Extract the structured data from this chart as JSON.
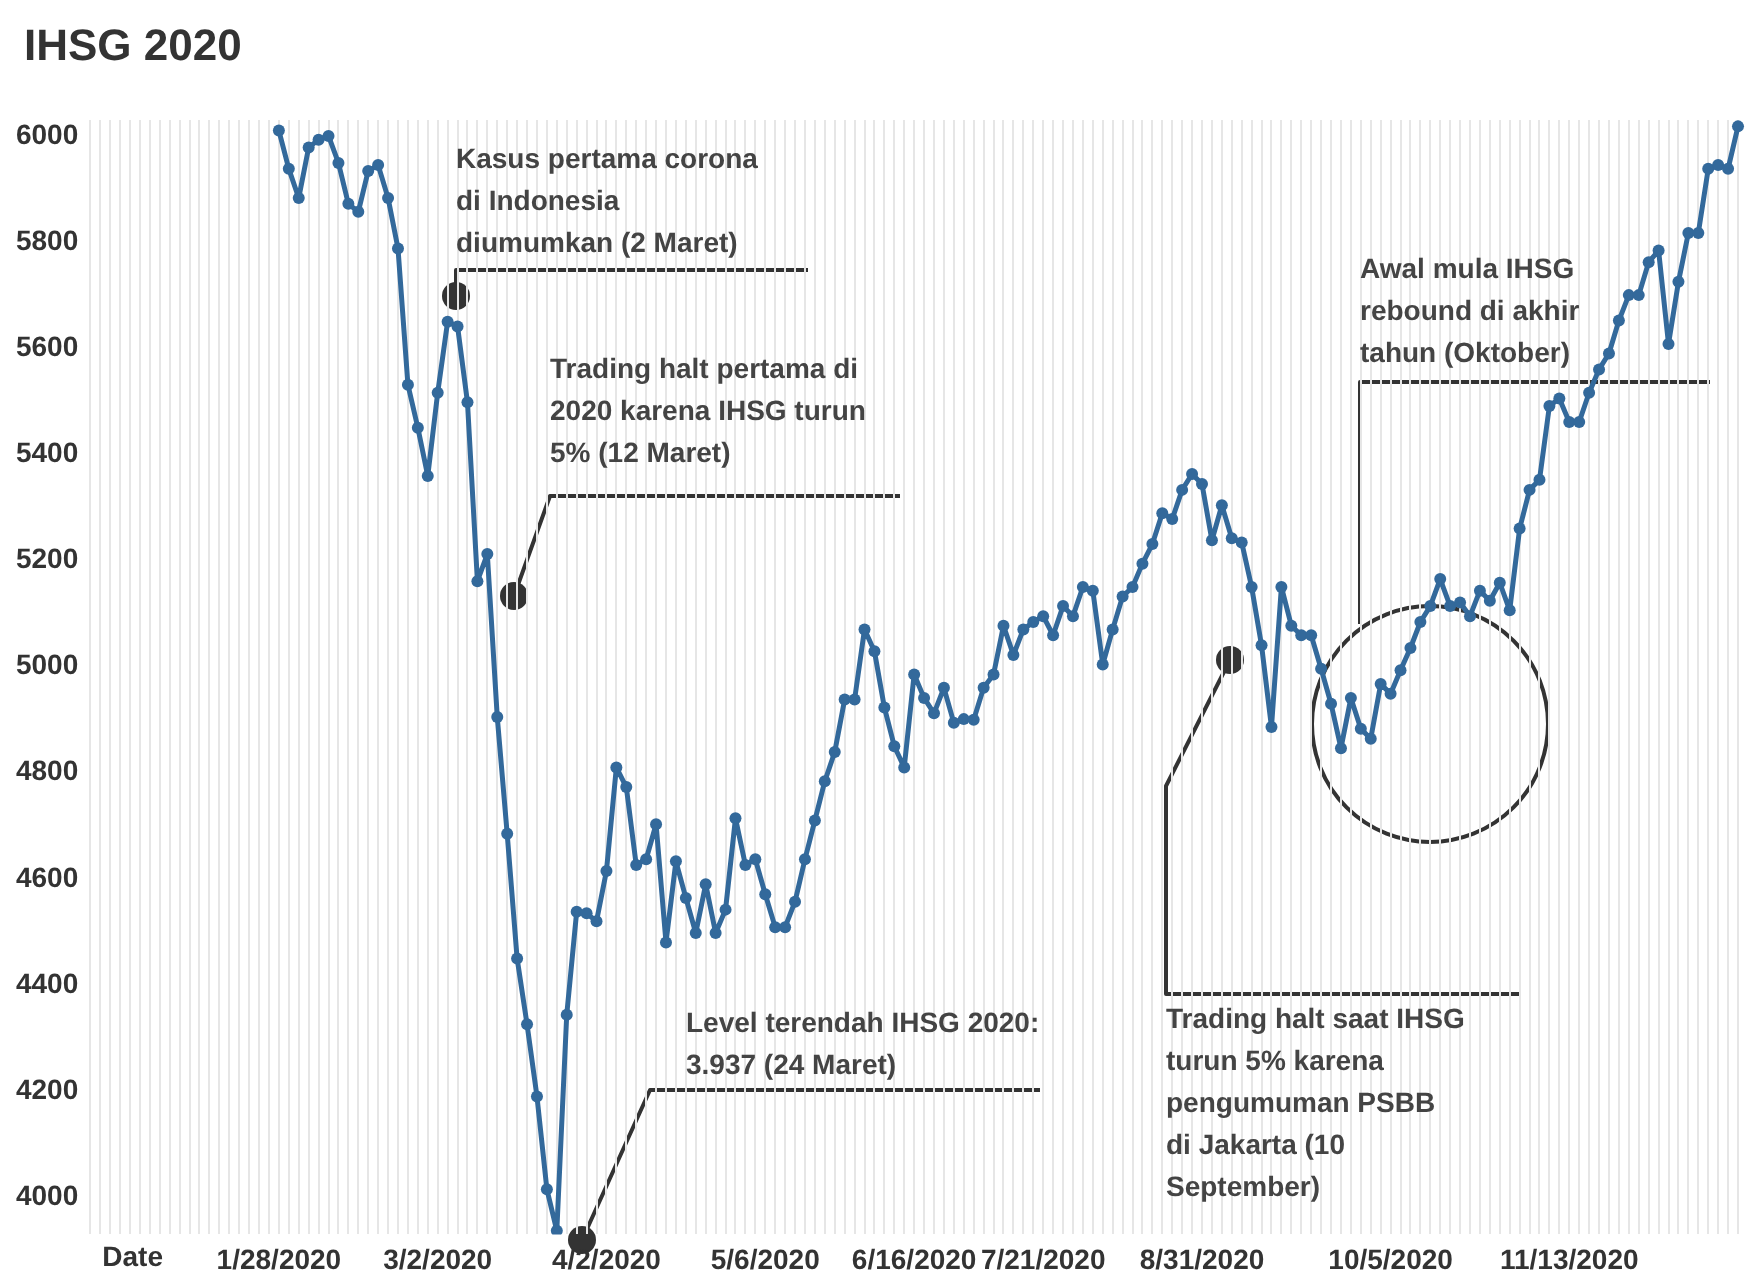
{
  "chart_data": {
    "type": "line",
    "title": "IHSG 2020",
    "xlabel": "Date",
    "categories": [
      null,
      null,
      null,
      null,
      null,
      null,
      null,
      null,
      null,
      null,
      null,
      null,
      null,
      null,
      null,
      null,
      null,
      null,
      null,
      "1/28/2020",
      null,
      null,
      null,
      null,
      null,
      null,
      null,
      null,
      null,
      null,
      null,
      null,
      null,
      null,
      null,
      "3/2/2020",
      null,
      null,
      null,
      null,
      null,
      null,
      null,
      null,
      null,
      null,
      null,
      null,
      null,
      null,
      null,
      null,
      "4/2/2020",
      null,
      null,
      null,
      null,
      null,
      null,
      null,
      null,
      null,
      null,
      null,
      null,
      null,
      null,
      null,
      "5/6/2020",
      null,
      null,
      null,
      null,
      null,
      null,
      null,
      null,
      null,
      null,
      null,
      null,
      null,
      null,
      "6/16/2020",
      null,
      null,
      null,
      null,
      null,
      null,
      null,
      null,
      null,
      null,
      null,
      null,
      "7/21/2020",
      null,
      null,
      null,
      null,
      null,
      null,
      null,
      null,
      null,
      null,
      null,
      null,
      null,
      null,
      null,
      "8/31/2020",
      null,
      null,
      null,
      null,
      null,
      null,
      null,
      null,
      null,
      null,
      null,
      null,
      null,
      null,
      null,
      null,
      null,
      null,
      "10/5/2020",
      null,
      null,
      null,
      null,
      null,
      null,
      null,
      null,
      null,
      null,
      null,
      null,
      null,
      null,
      null,
      null,
      null,
      "11/13/2020",
      null,
      null,
      null,
      null,
      null,
      null,
      null,
      null,
      null,
      null,
      null,
      null,
      null,
      null,
      null,
      null,
      null
    ],
    "values": [
      null,
      null,
      null,
      null,
      null,
      null,
      null,
      null,
      null,
      null,
      null,
      null,
      null,
      null,
      null,
      null,
      null,
      null,
      null,
      6010,
      5938,
      5883,
      5978,
      5993,
      6000,
      5949,
      5872,
      5857,
      5934,
      5945,
      5883,
      5788,
      5531,
      5450,
      5359,
      5516,
      5650,
      5641,
      5498,
      5161,
      5212,
      4905,
      4685,
      4450,
      4326,
      4190,
      4015,
      3937,
      4344,
      4538,
      4535,
      4520,
      4615,
      4810,
      4773,
      4626,
      4637,
      4703,
      4480,
      4633,
      4564,
      4498,
      4590,
      4498,
      4542,
      4714,
      4626,
      4637,
      4571,
      4509,
      4509,
      4557,
      4637,
      4710,
      4784,
      4839,
      4938,
      4938,
      5070,
      5029,
      4923,
      4850,
      4810,
      4985,
      4941,
      4912,
      4960,
      4894,
      4901,
      4900,
      4960,
      4985,
      5077,
      5022,
      5070,
      5084,
      5095,
      5059,
      5114,
      5095,
      5150,
      5143,
      5004,
      5070,
      5132,
      5150,
      5194,
      5231,
      5289,
      5278,
      5333,
      5363,
      5344,
      5238,
      5304,
      5242,
      5234,
      5150,
      5040,
      4886,
      5150,
      5077,
      5059,
      5059,
      4996,
      4930,
      4846,
      4941,
      4883,
      4864,
      4967,
      4949,
      4993,
      5035,
      5084,
      5114,
      5165,
      5114,
      5121,
      5095,
      5143,
      5124,
      5158,
      5106,
      5260,
      5333,
      5352,
      5491,
      5505,
      5461,
      5461,
      5516,
      5560,
      5590,
      5652,
      5700,
      5700,
      5762,
      5784,
      5608,
      5725,
      5817,
      5817,
      5938,
      5945,
      5938,
      6018
    ],
    "color": "#33699b",
    "marker": "circle",
    "ylim": [
      3930,
      6030
    ],
    "yticks": [
      4000,
      4200,
      4400,
      4600,
      4800,
      5000,
      5200,
      5400,
      5600,
      5800,
      6000
    ],
    "grid": "x",
    "annotations": [
      "Kasus pertama corona di Indonesia diumumkan (2 Maret)",
      "Trading halt pertama di 2020 karena IHSG turun 5% (12 Maret)",
      "Level terendah IHSG 2020: 3.937 (24 Maret)",
      "Trading halt saat IHSG turun 5% karena pengumuman PSBB di Jakarta (10 September)",
      "Awal mula IHSG rebound di akhir tahun (Oktober)"
    ]
  }
}
